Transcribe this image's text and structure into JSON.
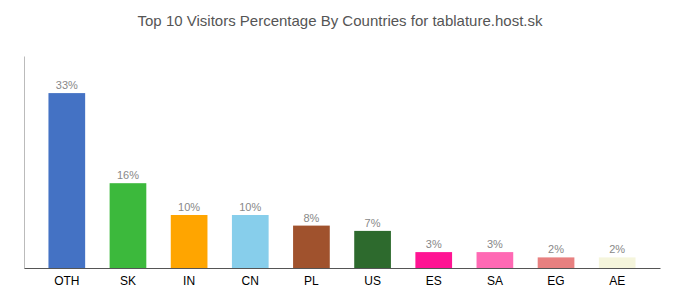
{
  "chart_data": {
    "type": "bar",
    "title": "Top 10 Visitors Percentage By Countries for tablature.host.sk",
    "categories": [
      "OTH",
      "SK",
      "IN",
      "CN",
      "PL",
      "US",
      "ES",
      "SA",
      "EG",
      "AE"
    ],
    "values": [
      33,
      16,
      10,
      10,
      8,
      7,
      3,
      3,
      2,
      2
    ],
    "value_labels": [
      "33%",
      "16%",
      "10%",
      "10%",
      "8%",
      "7%",
      "3%",
      "3%",
      "2%",
      "2%"
    ],
    "colors": [
      "#4472C4",
      "#3CB93C",
      "#FFA500",
      "#87CEEB",
      "#A0522D",
      "#2D6A2D",
      "#FF1493",
      "#FF69B4",
      "#E88080",
      "#F5F5DC"
    ],
    "ylim": [
      0,
      40
    ],
    "grid": false,
    "data_labels": true,
    "tick_labels": "x"
  }
}
